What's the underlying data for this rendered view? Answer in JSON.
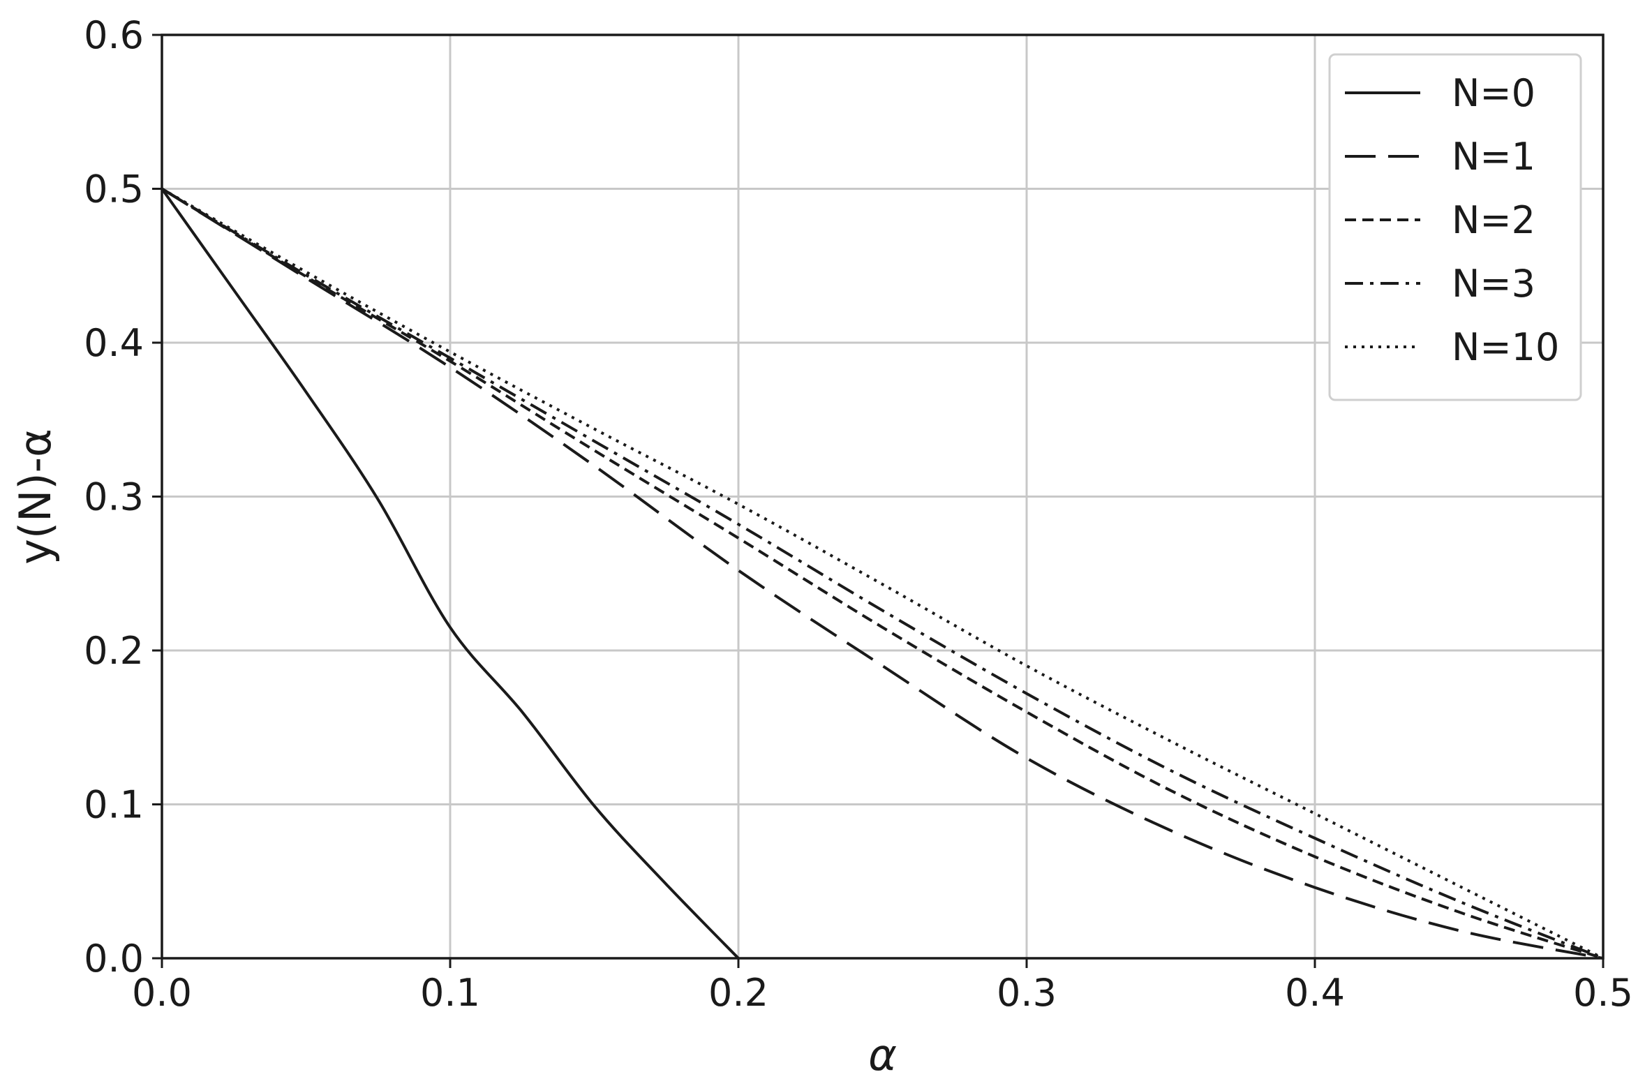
{
  "chart_data": {
    "type": "line",
    "title": "",
    "xlabel": "α",
    "ylabel": "y(N)-α",
    "xlim": [
      0.0,
      0.5
    ],
    "ylim": [
      0.0,
      0.6
    ],
    "xticks": [
      "0.0",
      "0.1",
      "0.2",
      "0.3",
      "0.4",
      "0.5"
    ],
    "yticks": [
      "0.0",
      "0.1",
      "0.2",
      "0.3",
      "0.4",
      "0.5",
      "0.6"
    ],
    "grid": true,
    "legend_position": "top-right",
    "series": [
      {
        "name": "N=0",
        "style": "solid",
        "x": [
          0,
          0.025,
          0.05,
          0.075,
          0.1,
          0.125,
          0.15,
          0.175,
          0.2
        ],
        "y": [
          0.5,
          0.434,
          0.368,
          0.298,
          0.215,
          0.16,
          0.099,
          0.048,
          0.0
        ]
      },
      {
        "name": "N=1",
        "style": "long-dash",
        "x": [
          0,
          0.05,
          0.1,
          0.15,
          0.2,
          0.25,
          0.3,
          0.35,
          0.4,
          0.45,
          0.5
        ],
        "y": [
          0.5,
          0.442,
          0.384,
          0.32,
          0.252,
          0.19,
          0.13,
          0.083,
          0.046,
          0.018,
          0.0
        ]
      },
      {
        "name": "N=2",
        "style": "short-dash",
        "x": [
          0,
          0.05,
          0.1,
          0.15,
          0.2,
          0.25,
          0.3,
          0.35,
          0.4,
          0.45,
          0.5
        ],
        "y": [
          0.5,
          0.443,
          0.388,
          0.33,
          0.273,
          0.215,
          0.16,
          0.109,
          0.066,
          0.03,
          0.0
        ]
      },
      {
        "name": "N=3",
        "style": "dash-dot",
        "x": [
          0,
          0.05,
          0.1,
          0.15,
          0.2,
          0.25,
          0.3,
          0.35,
          0.4,
          0.45,
          0.5
        ],
        "y": [
          0.5,
          0.444,
          0.39,
          0.336,
          0.282,
          0.226,
          0.172,
          0.122,
          0.078,
          0.037,
          0.0
        ]
      },
      {
        "name": "N=10",
        "style": "dotted",
        "x": [
          0,
          0.05,
          0.1,
          0.15,
          0.2,
          0.25,
          0.3,
          0.35,
          0.4,
          0.45,
          0.5
        ],
        "y": [
          0.5,
          0.446,
          0.394,
          0.344,
          0.295,
          0.243,
          0.19,
          0.141,
          0.094,
          0.047,
          0.0
        ]
      }
    ]
  }
}
